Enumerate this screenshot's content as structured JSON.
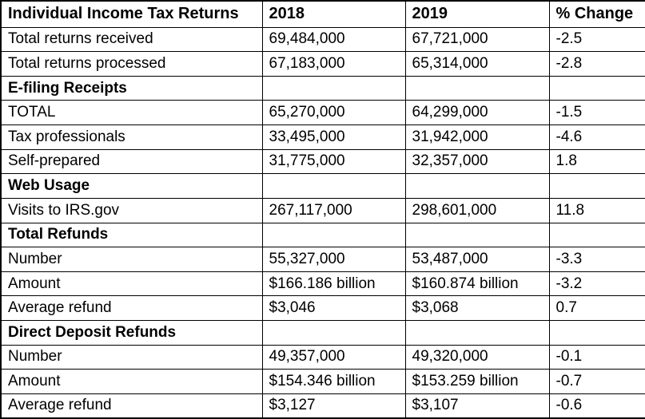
{
  "colors": {
    "border": "#000000",
    "text": "#000000",
    "background": "#ffffff"
  },
  "table": {
    "header": [
      "Individual Income Tax Returns",
      "2018",
      "2019",
      "% Change"
    ],
    "rows": [
      {
        "section": false,
        "cells": [
          "Total returns received",
          "69,484,000",
          "67,721,000",
          "-2.5"
        ]
      },
      {
        "section": false,
        "cells": [
          "Total returns processed",
          "67,183,000",
          "65,314,000",
          "-2.8"
        ]
      },
      {
        "section": true,
        "cells": [
          "E-filing Receipts",
          "",
          "",
          ""
        ]
      },
      {
        "section": false,
        "cells": [
          "TOTAL",
          "65,270,000",
          "64,299,000",
          "-1.5"
        ]
      },
      {
        "section": false,
        "cells": [
          "Tax professionals",
          "33,495,000",
          "31,942,000",
          "-4.6"
        ]
      },
      {
        "section": false,
        "cells": [
          "Self-prepared",
          "31,775,000",
          "32,357,000",
          "1.8"
        ]
      },
      {
        "section": true,
        "cells": [
          "Web Usage",
          "",
          "",
          ""
        ]
      },
      {
        "section": false,
        "cells": [
          "Visits to IRS.gov",
          "267,117,000",
          "298,601,000",
          "11.8"
        ]
      },
      {
        "section": true,
        "cells": [
          "Total Refunds",
          "",
          "",
          ""
        ]
      },
      {
        "section": false,
        "cells": [
          "Number",
          "55,327,000",
          "53,487,000",
          "-3.3"
        ]
      },
      {
        "section": false,
        "cells": [
          "Amount",
          "$166.186 billion",
          "$160.874 billion",
          "-3.2"
        ]
      },
      {
        "section": false,
        "cells": [
          "Average refund",
          "$3,046",
          "$3,068",
          "0.7"
        ]
      },
      {
        "section": true,
        "cells": [
          "Direct Deposit Refunds",
          "",
          "",
          ""
        ]
      },
      {
        "section": false,
        "cells": [
          "Number",
          "49,357,000",
          "49,320,000",
          "-0.1"
        ]
      },
      {
        "section": false,
        "cells": [
          "Amount",
          "$154.346 billion",
          "$153.259 billion",
          "-0.7"
        ]
      },
      {
        "section": false,
        "cells": [
          "Average refund",
          "$3,127",
          "$3,107",
          "-0.6"
        ]
      }
    ]
  },
  "chart_data": {
    "type": "table",
    "title": "Individual Income Tax Returns",
    "columns": [
      "Individual Income Tax Returns",
      "2018",
      "2019",
      "% Change"
    ],
    "rows": [
      [
        "Total returns received",
        "69,484,000",
        "67,721,000",
        "-2.5"
      ],
      [
        "Total returns processed",
        "67,183,000",
        "65,314,000",
        "-2.8"
      ],
      [
        "E-filing Receipts",
        "",
        "",
        ""
      ],
      [
        "TOTAL",
        "65,270,000",
        "64,299,000",
        "-1.5"
      ],
      [
        "Tax professionals",
        "33,495,000",
        "31,942,000",
        "-4.6"
      ],
      [
        "Self-prepared",
        "31,775,000",
        "32,357,000",
        "1.8"
      ],
      [
        "Web Usage",
        "",
        "",
        ""
      ],
      [
        "Visits to IRS.gov",
        "267,117,000",
        "298,601,000",
        "11.8"
      ],
      [
        "Total Refunds",
        "",
        "",
        ""
      ],
      [
        "Number",
        "55,327,000",
        "53,487,000",
        "-3.3"
      ],
      [
        "Amount",
        "$166.186 billion",
        "$160.874 billion",
        "-3.2"
      ],
      [
        "Average refund",
        "$3,046",
        "$3,068",
        "0.7"
      ],
      [
        "Direct Deposit Refunds",
        "",
        "",
        ""
      ],
      [
        "Number",
        "49,357,000",
        "49,320,000",
        "-0.1"
      ],
      [
        "Amount",
        "$154.346 billion",
        "$153.259 billion",
        "-0.7"
      ],
      [
        "Average refund",
        "$3,127",
        "$3,107",
        "-0.6"
      ]
    ]
  }
}
